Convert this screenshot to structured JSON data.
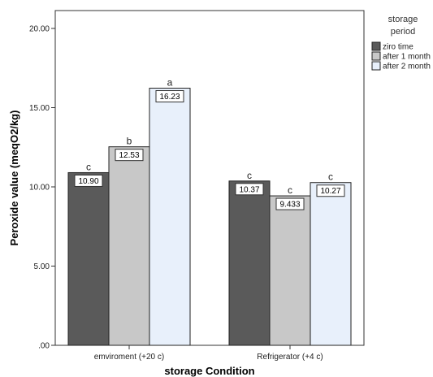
{
  "chart_data": {
    "type": "bar",
    "title": "",
    "xlabel": "storage Condition",
    "ylabel": "Peroxide value  (meqO2/kg)",
    "ylim": [
      0,
      20
    ],
    "yticks": [
      {
        "value": 0,
        "label": ".00"
      },
      {
        "value": 5,
        "label": "5.00"
      },
      {
        "value": 10,
        "label": "10.00"
      },
      {
        "value": 15,
        "label": "15.00"
      },
      {
        "value": 20,
        "label": "20.00"
      }
    ],
    "categories": [
      "emviroment (+20 c)",
      "Refrigerator (+4 c)"
    ],
    "legend": {
      "title_lines": [
        "storage",
        "period"
      ],
      "position": "right"
    },
    "series": [
      {
        "name": "ziro time",
        "color": "#5a5a5a",
        "values": [
          10.9,
          10.37
        ],
        "labels": [
          "10.90",
          "10.37"
        ],
        "letters": [
          "c",
          "c"
        ]
      },
      {
        "name": "after 1 month",
        "color": "#c8c8c8",
        "values": [
          12.53,
          9.433
        ],
        "labels": [
          "12.53",
          "9.433"
        ],
        "letters": [
          "b",
          "c"
        ]
      },
      {
        "name": "after 2 month",
        "color": "#e8f0fb",
        "values": [
          16.23,
          10.27
        ],
        "labels": [
          "16.23",
          "10.27"
        ],
        "letters": [
          "a",
          "c"
        ]
      }
    ]
  }
}
